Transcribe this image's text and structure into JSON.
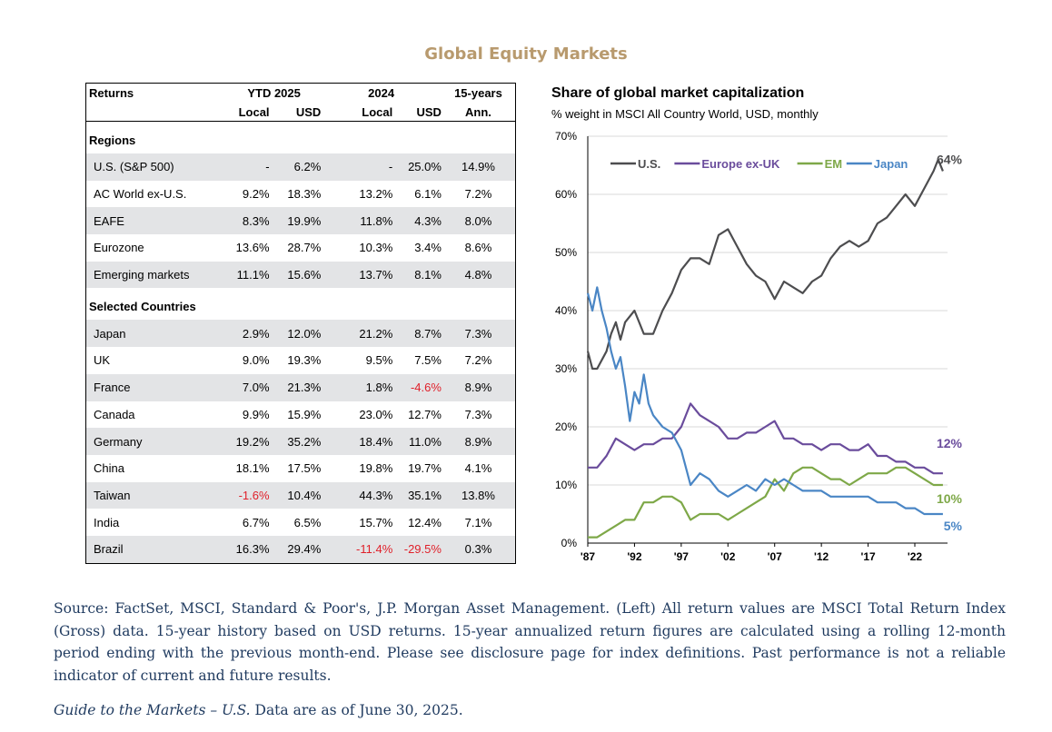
{
  "page": {
    "title": "Global Equity Markets"
  },
  "table": {
    "header": {
      "returns_label": "Returns",
      "ytd_label": "YTD 2025",
      "y2024_label": "2024",
      "fifteen_label": "15-years",
      "local_label": "Local",
      "usd_label": "USD",
      "ann_label": "Ann."
    },
    "regions_heading": "Regions",
    "regions": [
      {
        "name": "U.S. (S&P 500)",
        "ytd_local": "-",
        "ytd_usd": "6.2%",
        "y24_local": "-",
        "y24_usd": "25.0%",
        "ann15": "14.9%"
      },
      {
        "name": "AC World ex-U.S.",
        "ytd_local": "9.2%",
        "ytd_usd": "18.3%",
        "y24_local": "13.2%",
        "y24_usd": "6.1%",
        "ann15": "7.2%"
      },
      {
        "name": "EAFE",
        "ytd_local": "8.3%",
        "ytd_usd": "19.9%",
        "y24_local": "11.8%",
        "y24_usd": "4.3%",
        "ann15": "8.0%"
      },
      {
        "name": "Eurozone",
        "ytd_local": "13.6%",
        "ytd_usd": "28.7%",
        "y24_local": "10.3%",
        "y24_usd": "3.4%",
        "ann15": "8.6%"
      },
      {
        "name": "Emerging markets",
        "ytd_local": "11.1%",
        "ytd_usd": "15.6%",
        "y24_local": "13.7%",
        "y24_usd": "8.1%",
        "ann15": "4.8%"
      }
    ],
    "countries_heading": "Selected Countries",
    "countries": [
      {
        "name": "Japan",
        "ytd_local": "2.9%",
        "ytd_usd": "12.0%",
        "y24_local": "21.2%",
        "y24_usd": "8.7%",
        "ann15": "7.3%"
      },
      {
        "name": "UK",
        "ytd_local": "9.0%",
        "ytd_usd": "19.3%",
        "y24_local": "9.5%",
        "y24_usd": "7.5%",
        "ann15": "7.2%"
      },
      {
        "name": "France",
        "ytd_local": "7.0%",
        "ytd_usd": "21.3%",
        "y24_local": "1.8%",
        "y24_usd": "-4.6%",
        "ann15": "8.9%"
      },
      {
        "name": "Canada",
        "ytd_local": "9.9%",
        "ytd_usd": "15.9%",
        "y24_local": "23.0%",
        "y24_usd": "12.7%",
        "ann15": "7.3%"
      },
      {
        "name": "Germany",
        "ytd_local": "19.2%",
        "ytd_usd": "35.2%",
        "y24_local": "18.4%",
        "y24_usd": "11.0%",
        "ann15": "8.9%"
      },
      {
        "name": "China",
        "ytd_local": "18.1%",
        "ytd_usd": "17.5%",
        "y24_local": "19.8%",
        "y24_usd": "19.7%",
        "ann15": "4.1%"
      },
      {
        "name": "Taiwan",
        "ytd_local": "-1.6%",
        "ytd_usd": "10.4%",
        "y24_local": "44.3%",
        "y24_usd": "35.1%",
        "ann15": "13.8%"
      },
      {
        "name": "India",
        "ytd_local": "6.7%",
        "ytd_usd": "6.5%",
        "y24_local": "15.7%",
        "y24_usd": "12.4%",
        "ann15": "7.1%"
      },
      {
        "name": "Brazil",
        "ytd_local": "16.3%",
        "ytd_usd": "29.4%",
        "y24_local": "-11.4%",
        "y24_usd": "-29.5%",
        "ann15": "0.3%"
      }
    ]
  },
  "chart_data": {
    "type": "line",
    "title": "Share of global market capitalization",
    "subtitle": "% weight in MSCI All Country World, USD, monthly",
    "xlabel": "",
    "ylabel": "",
    "xlim": [
      1987,
      2025.5
    ],
    "ylim": [
      0,
      70
    ],
    "x_ticks": [
      1987,
      1992,
      1997,
      2002,
      2007,
      2012,
      2017,
      2022
    ],
    "x_tick_labels": [
      "'87",
      "'92",
      "'97",
      "'02",
      "'07",
      "'12",
      "'17",
      "'22"
    ],
    "y_ticks": [
      0,
      10,
      20,
      30,
      40,
      50,
      60,
      70
    ],
    "y_tick_labels": [
      "0%",
      "10%",
      "20%",
      "30%",
      "40%",
      "50%",
      "60%",
      "70%"
    ],
    "grid": true,
    "legend_position": "top",
    "series": [
      {
        "name": "U.S.",
        "color": "#4d4d4f",
        "x": [
          1987,
          1987.5,
          1988,
          1989,
          1989.5,
          1990,
          1990.5,
          1991,
          1992,
          1993,
          1994,
          1995,
          1996,
          1997,
          1998,
          1999,
          2000,
          2001,
          2002,
          2003,
          2004,
          2005,
          2006,
          2007,
          2008,
          2009,
          2010,
          2011,
          2012,
          2013,
          2014,
          2015,
          2016,
          2017,
          2018,
          2019,
          2020,
          2021,
          2022,
          2023,
          2024,
          2024.5,
          2025
        ],
        "y": [
          33,
          30,
          30,
          33,
          36,
          38,
          35,
          38,
          40,
          36,
          36,
          40,
          43,
          47,
          49,
          49,
          48,
          53,
          54,
          51,
          48,
          46,
          45,
          42,
          45,
          44,
          43,
          45,
          46,
          49,
          51,
          52,
          51,
          52,
          55,
          56,
          58,
          60,
          58,
          61,
          64,
          66,
          64
        ]
      },
      {
        "name": "Europe ex-UK",
        "color": "#6a4c9c",
        "x": [
          1987,
          1988,
          1989,
          1990,
          1991,
          1992,
          1993,
          1994,
          1995,
          1996,
          1997,
          1998,
          1999,
          2000,
          2001,
          2002,
          2003,
          2004,
          2005,
          2006,
          2007,
          2008,
          2009,
          2010,
          2011,
          2012,
          2013,
          2014,
          2015,
          2016,
          2017,
          2018,
          2019,
          2020,
          2021,
          2022,
          2023,
          2024,
          2025
        ],
        "y": [
          13,
          13,
          15,
          18,
          17,
          16,
          17,
          17,
          18,
          18,
          20,
          24,
          22,
          21,
          20,
          18,
          18,
          19,
          19,
          20,
          21,
          18,
          18,
          17,
          17,
          16,
          17,
          17,
          16,
          16,
          17,
          15,
          15,
          14,
          14,
          13,
          13,
          12,
          12
        ]
      },
      {
        "name": "EM",
        "color": "#7ea848",
        "x": [
          1987,
          1988,
          1989,
          1990,
          1991,
          1992,
          1993,
          1994,
          1995,
          1996,
          1997,
          1998,
          1999,
          2000,
          2001,
          2002,
          2003,
          2004,
          2005,
          2006,
          2007,
          2008,
          2009,
          2010,
          2011,
          2012,
          2013,
          2014,
          2015,
          2016,
          2017,
          2018,
          2019,
          2020,
          2021,
          2022,
          2023,
          2024,
          2025
        ],
        "y": [
          1,
          1,
          2,
          3,
          4,
          4,
          7,
          7,
          8,
          8,
          7,
          4,
          5,
          5,
          5,
          4,
          5,
          6,
          7,
          8,
          11,
          9,
          12,
          13,
          13,
          12,
          11,
          11,
          10,
          11,
          12,
          12,
          12,
          13,
          13,
          12,
          11,
          10,
          10
        ]
      },
      {
        "name": "Japan",
        "color": "#4a86c5",
        "x": [
          1987,
          1987.5,
          1988,
          1988.5,
          1989,
          1989.5,
          1990,
          1990.5,
          1991,
          1991.5,
          1992,
          1992.5,
          1993,
          1993.5,
          1994,
          1995,
          1996,
          1997,
          1998,
          1999,
          2000,
          2001,
          2002,
          2003,
          2004,
          2005,
          2006,
          2007,
          2008,
          2009,
          2010,
          2011,
          2012,
          2013,
          2014,
          2015,
          2016,
          2017,
          2018,
          2019,
          2020,
          2021,
          2022,
          2023,
          2024,
          2025
        ],
        "y": [
          43,
          40,
          44,
          40,
          37,
          33,
          30,
          32,
          27,
          21,
          26,
          24,
          29,
          24,
          22,
          20,
          19,
          16,
          10,
          12,
          11,
          9,
          8,
          9,
          10,
          9,
          11,
          10,
          11,
          10,
          9,
          9,
          9,
          8,
          8,
          8,
          8,
          8,
          7,
          7,
          7,
          6,
          6,
          5,
          5,
          5
        ]
      }
    ],
    "end_labels": [
      "64%",
      "12%",
      "10%",
      "5%"
    ]
  },
  "footer": {
    "source": "Source: FactSet, MSCI, Standard & Poor's, J.P. Morgan Asset Management. (Left) All return values are MSCI Total Return Index (Gross) data. 15-year history based on USD returns. 15-year annualized return figures are calculated using a rolling 12-month period ending with the previous month-end. Please see disclosure page for index definitions. Past performance is not a reliable indicator of current and future results.",
    "guide_title": "Guide to the Markets – U.S.",
    "guide_date": "Data are as of June 30, 2025."
  }
}
